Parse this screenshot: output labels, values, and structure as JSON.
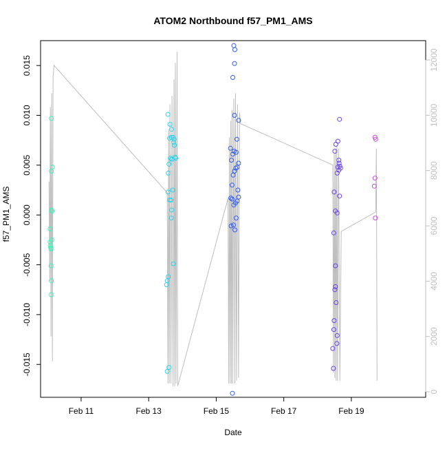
{
  "chart_data": {
    "type": "scatter",
    "title": "ATOM2 Northbound f57_PM1_AMS",
    "xlabel": "Date",
    "ylabel": "f57_PM1_AMS",
    "x_unit": "day of February",
    "xlim": [
      9.8,
      21.2
    ],
    "ylim": [
      -0.0183,
      0.0175
    ],
    "y2lim": [
      -200,
      12700
    ],
    "x_ticks": [
      {
        "value": 11,
        "label": "Feb 11"
      },
      {
        "value": 13,
        "label": "Feb 13"
      },
      {
        "value": 15,
        "label": "Feb 15"
      },
      {
        "value": 17,
        "label": "Feb 17"
      },
      {
        "value": 19,
        "label": "Feb 19"
      }
    ],
    "y_ticks": [
      {
        "value": -0.015,
        "label": "-0.015"
      },
      {
        "value": -0.01,
        "label": "-0.010"
      },
      {
        "value": -0.005,
        "label": "-0.005"
      },
      {
        "value": 0.0,
        "label": "0.000"
      },
      {
        "value": 0.005,
        "label": "0.005"
      },
      {
        "value": 0.01,
        "label": "0.010"
      },
      {
        "value": 0.015,
        "label": "0.015"
      }
    ],
    "y2_ticks": [
      {
        "value": 0,
        "label": "0"
      },
      {
        "value": 2000,
        "label": "2000"
      },
      {
        "value": 4000,
        "label": "4000"
      },
      {
        "value": 6000,
        "label": "6000"
      },
      {
        "value": 8000,
        "label": "8000"
      },
      {
        "value": 10000,
        "label": "10000"
      },
      {
        "value": 12000,
        "label": "12000"
      }
    ],
    "grid": false,
    "legend": "none",
    "colors": {
      "axis": "#000000",
      "secondary_axis": "#bfbfbf",
      "secondary_line": "#bdbdbd"
    },
    "secondary_line_y2": [
      [
        10.05,
        7600
      ],
      [
        10.07,
        4000
      ],
      [
        10.09,
        10300
      ],
      [
        10.11,
        2000
      ],
      [
        10.13,
        10800
      ],
      [
        10.15,
        1100
      ],
      [
        10.17,
        11400
      ],
      [
        10.2,
        11800
      ],
      [
        13.55,
        7200
      ],
      [
        13.57,
        300
      ],
      [
        13.59,
        9500
      ],
      [
        13.61,
        300
      ],
      [
        13.63,
        10400
      ],
      [
        13.66,
        300
      ],
      [
        13.69,
        10700
      ],
      [
        13.72,
        200
      ],
      [
        13.75,
        11300
      ],
      [
        13.77,
        200
      ],
      [
        13.79,
        11900
      ],
      [
        13.81,
        300
      ],
      [
        13.84,
        12300
      ],
      [
        13.86,
        200
      ],
      [
        15.35,
        7000
      ],
      [
        15.37,
        300
      ],
      [
        15.39,
        9200
      ],
      [
        15.41,
        300
      ],
      [
        15.43,
        9800
      ],
      [
        15.45,
        300
      ],
      [
        15.47,
        10200
      ],
      [
        15.49,
        300
      ],
      [
        15.52,
        10600
      ],
      [
        15.55,
        300
      ],
      [
        15.57,
        10800
      ],
      [
        15.6,
        400
      ],
      [
        15.63,
        10400
      ],
      [
        15.66,
        500
      ],
      [
        15.69,
        10100
      ],
      [
        15.72,
        9700
      ],
      [
        18.45,
        8200
      ],
      [
        18.47,
        700
      ],
      [
        18.49,
        8600
      ],
      [
        18.51,
        500
      ],
      [
        18.53,
        8800
      ],
      [
        18.55,
        400
      ],
      [
        18.57,
        8900
      ],
      [
        18.59,
        400
      ],
      [
        18.62,
        8800
      ],
      [
        18.66,
        400
      ],
      [
        18.7,
        5800
      ],
      [
        19.72,
        6500
      ],
      [
        19.74,
        8800
      ],
      [
        19.76,
        400
      ]
    ],
    "series": [
      {
        "color": "#3cf4b4",
        "points": [
          [
            10.08,
            -0.0027
          ],
          [
            10.09,
            -0.0031
          ],
          [
            10.1,
            -0.0033
          ],
          [
            10.11,
            -0.0034
          ],
          [
            10.08,
            -0.0014
          ],
          [
            10.13,
            -0.0025
          ],
          [
            10.12,
            0.0005
          ],
          [
            10.14,
            0.0004
          ],
          [
            10.12,
            0.0044
          ],
          [
            10.15,
            0.0048
          ],
          [
            10.12,
            0.0097
          ],
          [
            10.11,
            -0.0051
          ],
          [
            10.12,
            -0.0066
          ],
          [
            10.11,
            -0.008
          ]
        ]
      },
      {
        "color": "#2ad4ee",
        "points": [
          [
            13.55,
            -0.0157
          ],
          [
            13.6,
            -0.0153
          ],
          [
            13.53,
            -0.007
          ],
          [
            13.55,
            -0.0066
          ],
          [
            13.58,
            -0.0062
          ],
          [
            13.73,
            -0.0049
          ],
          [
            13.57,
            0.0023
          ],
          [
            13.62,
            0.0015
          ],
          [
            13.66,
            0.0015
          ],
          [
            13.67,
            -0.0003
          ],
          [
            13.68,
            0.0005
          ],
          [
            13.71,
            0.0025
          ],
          [
            13.58,
            0.0042
          ],
          [
            13.6,
            0.0051
          ],
          [
            13.64,
            0.0057
          ],
          [
            13.67,
            0.0056
          ],
          [
            13.7,
            0.0056
          ],
          [
            13.74,
            0.0073
          ],
          [
            13.76,
            0.007
          ],
          [
            13.78,
            0.0058
          ],
          [
            13.8,
            0.0057
          ],
          [
            13.62,
            0.0077
          ],
          [
            13.67,
            0.0078
          ],
          [
            13.72,
            0.0078
          ],
          [
            13.75,
            0.0076
          ],
          [
            13.57,
            0.0101
          ],
          [
            13.63,
            0.0091
          ],
          [
            13.68,
            0.0086
          ]
        ]
      },
      {
        "color": "#2f5bf0",
        "points": [
          [
            15.48,
            -0.0179
          ],
          [
            15.44,
            -0.0011
          ],
          [
            15.51,
            -0.001
          ],
          [
            15.55,
            -0.0015
          ],
          [
            15.59,
            -0.0003
          ],
          [
            15.43,
            0.0017
          ],
          [
            15.47,
            0.0016
          ],
          [
            15.52,
            0.001
          ],
          [
            15.57,
            0.0012
          ],
          [
            15.62,
            0.0014
          ],
          [
            15.66,
            0.0018
          ],
          [
            15.64,
            0.0025
          ],
          [
            15.47,
            0.003
          ],
          [
            15.5,
            0.004
          ],
          [
            15.54,
            0.0044
          ],
          [
            15.58,
            0.0047
          ],
          [
            15.62,
            0.0048
          ],
          [
            15.66,
            0.0052
          ],
          [
            15.45,
            0.0055
          ],
          [
            15.49,
            0.0061
          ],
          [
            15.53,
            0.0064
          ],
          [
            15.42,
            0.0067
          ],
          [
            15.59,
            0.0063
          ],
          [
            15.61,
            0.0076
          ],
          [
            15.66,
            0.0095
          ],
          [
            15.54,
            0.01
          ],
          [
            15.49,
            0.0138
          ],
          [
            15.54,
            0.0152
          ],
          [
            15.55,
            0.0166
          ],
          [
            15.52,
            0.017
          ]
        ]
      },
      {
        "color": "#6a44e6",
        "points": [
          [
            18.45,
            -0.0134
          ],
          [
            18.47,
            -0.0154
          ],
          [
            18.48,
            -0.0115
          ],
          [
            18.49,
            -0.0106
          ],
          [
            18.51,
            -0.0075
          ],
          [
            18.53,
            -0.0072
          ],
          [
            18.55,
            -0.0088
          ],
          [
            18.57,
            -0.0129
          ],
          [
            18.58,
            -0.0121
          ],
          [
            18.53,
            -0.0051
          ],
          [
            18.48,
            -0.0018
          ],
          [
            18.49,
            0.0023
          ],
          [
            18.53,
            0.0004
          ],
          [
            18.58,
            0.0002
          ],
          [
            18.65,
            0.0019
          ],
          [
            18.58,
            0.0042
          ],
          [
            18.63,
            0.0045
          ],
          [
            18.66,
            0.0049
          ],
          [
            18.6,
            0.0048
          ],
          [
            18.64,
            0.0052
          ],
          [
            18.51,
            0.0064
          ],
          [
            18.54,
            0.0071
          ],
          [
            18.6,
            0.0074
          ],
          [
            18.63,
            0.0055
          ],
          [
            18.68,
            0.0047
          ],
          [
            18.65,
            0.0096
          ]
        ]
      },
      {
        "color": "#c84ad8",
        "points": [
          [
            19.7,
            0.0078
          ],
          [
            19.72,
            0.0076
          ],
          [
            19.7,
            0.0037
          ],
          [
            19.68,
            0.0029
          ],
          [
            19.71,
            -0.0003
          ]
        ]
      }
    ]
  }
}
